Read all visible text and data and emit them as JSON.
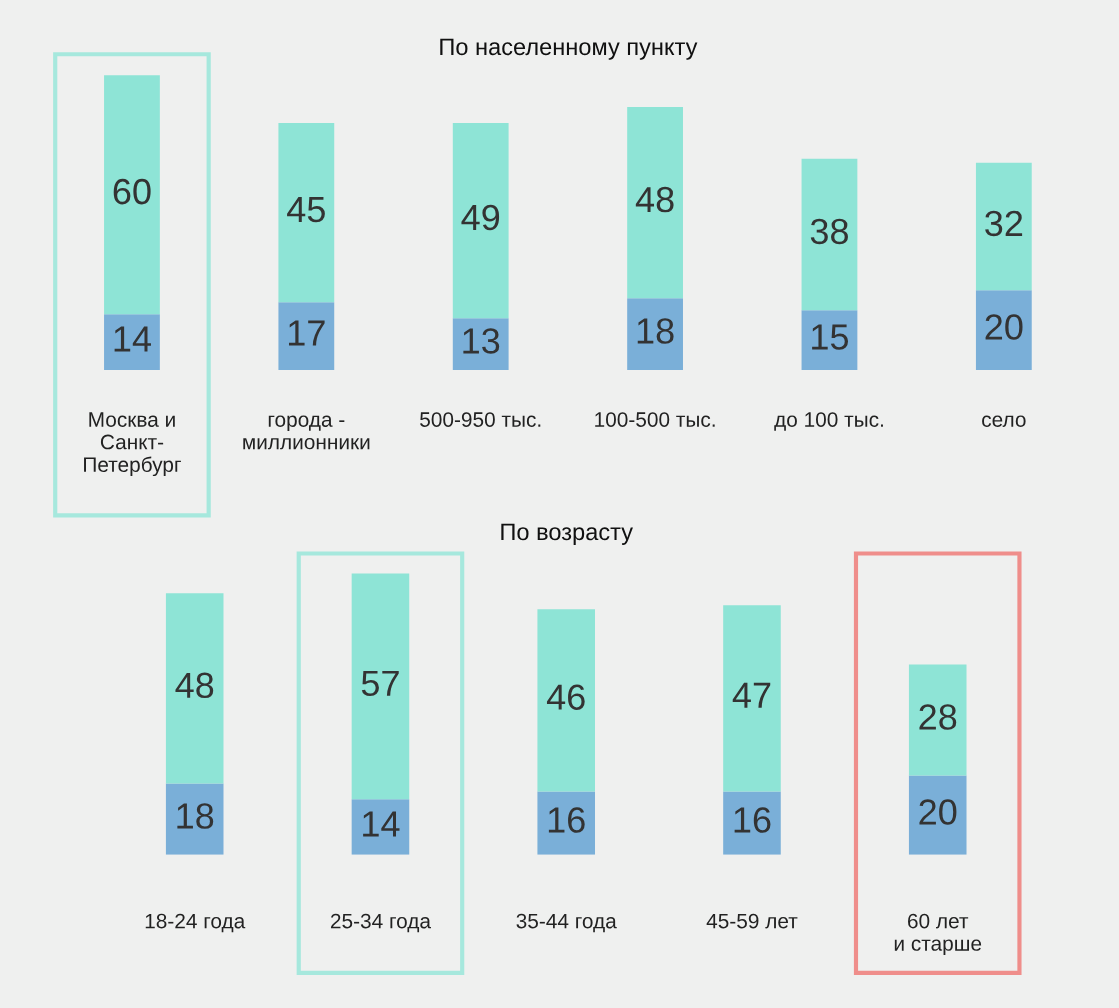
{
  "chart_data": [
    {
      "type": "bar",
      "title": "По населенному пункту",
      "stacked": true,
      "data_labels": true,
      "categories": [
        "Москва и\nСанкт-\nПетербург",
        "города -\nмиллионники",
        "500-950 тыс.",
        "100-500 тыс.",
        "до 100 тыс.",
        "село"
      ],
      "series": [
        {
          "color": "#7aafd8",
          "values": [
            14,
            17,
            13,
            18,
            15,
            20
          ]
        },
        {
          "color": "#8ee4d6",
          "values": [
            60,
            45,
            49,
            48,
            38,
            32
          ]
        }
      ]
    },
    {
      "type": "bar",
      "title": "По возрасту",
      "stacked": true,
      "data_labels": true,
      "categories": [
        "18-24 года",
        "25-34 года",
        "35-44 года",
        "45-59 лет",
        "60 лет\nи старше"
      ],
      "series": [
        {
          "color": "#7aafd8",
          "values": [
            18,
            14,
            16,
            16,
            20
          ]
        },
        {
          "color": "#8ee4d6",
          "values": [
            48,
            57,
            46,
            47,
            28
          ]
        }
      ]
    }
  ]
}
